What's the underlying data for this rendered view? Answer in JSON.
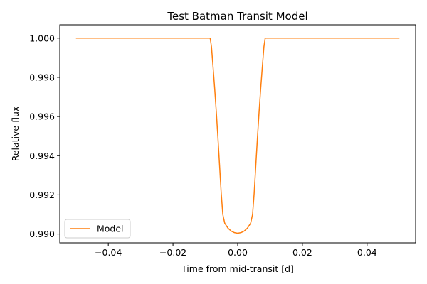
{
  "chart_data": {
    "type": "line",
    "title": "Test Batman Transit Model",
    "xlabel": "Time from mid-transit [d]",
    "ylabel": "Relative flux",
    "xlim": [
      -0.055,
      0.055
    ],
    "ylim": [
      0.98955,
      1.00068
    ],
    "x_ticks": [
      -0.04,
      -0.02,
      0.0,
      0.02,
      0.04
    ],
    "x_tick_labels": [
      "−0.04",
      "−0.02",
      "0.00",
      "0.02",
      "0.04"
    ],
    "y_ticks": [
      0.99,
      0.992,
      0.994,
      0.996,
      0.998,
      1.0
    ],
    "y_tick_labels": [
      "0.990",
      "0.992",
      "0.994",
      "0.996",
      "0.998",
      "1.000"
    ],
    "grid": false,
    "legend_position": "lower-left",
    "series": [
      {
        "name": "Model",
        "color": "#ff7f0e",
        "x": [
          -0.05,
          -0.0085,
          -0.0081,
          -0.0076,
          -0.0071,
          -0.0066,
          -0.0061,
          -0.0056,
          -0.0051,
          -0.0046,
          -0.004,
          -0.003,
          -0.002,
          -0.001,
          0.0,
          0.001,
          0.002,
          0.003,
          0.004,
          0.0046,
          0.0051,
          0.0056,
          0.0061,
          0.0066,
          0.0071,
          0.0076,
          0.0081,
          0.0085,
          0.05
        ],
        "y": [
          1.0,
          1.0,
          0.99955,
          0.9985,
          0.9974,
          0.9962,
          0.9949,
          0.9935,
          0.9921,
          0.991,
          0.99055,
          0.9903,
          0.99015,
          0.99007,
          0.99004,
          0.99007,
          0.99015,
          0.9903,
          0.99055,
          0.991,
          0.9921,
          0.9935,
          0.9949,
          0.9962,
          0.9974,
          0.9985,
          0.99955,
          1.0,
          1.0
        ]
      }
    ]
  }
}
